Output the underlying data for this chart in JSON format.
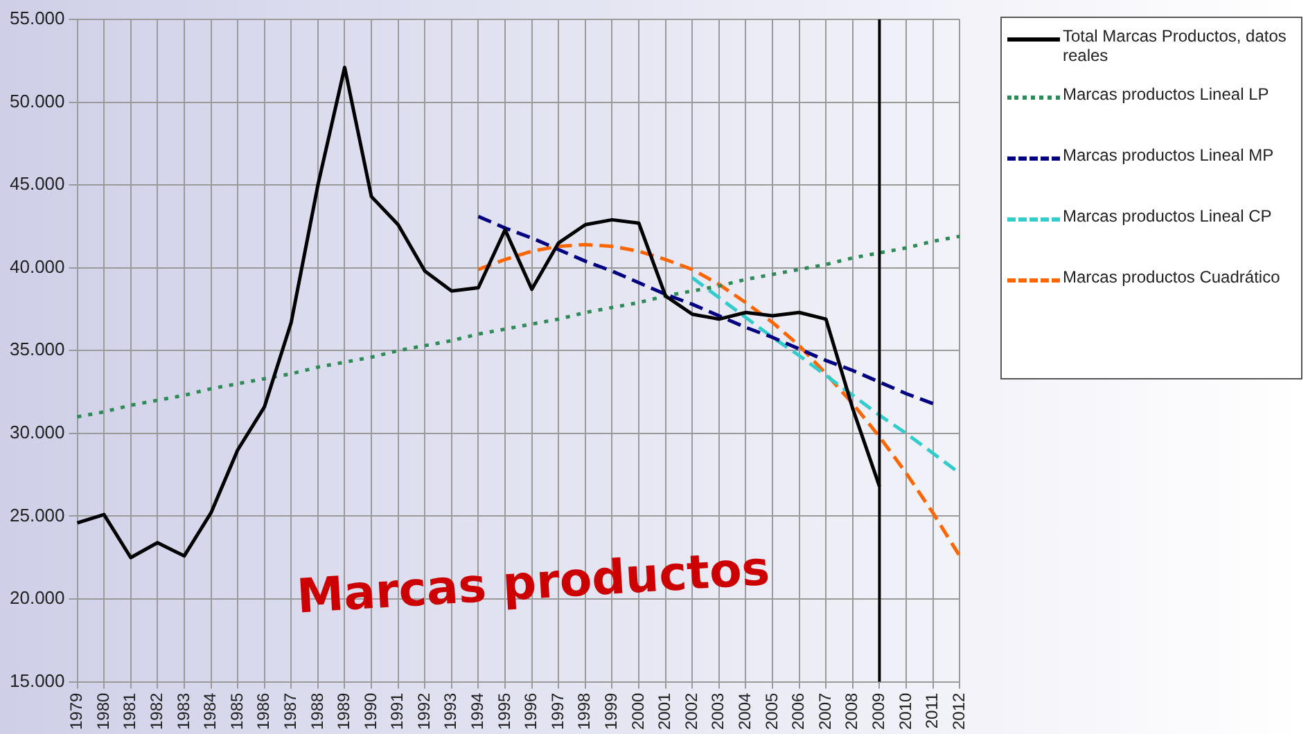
{
  "chart_data": {
    "type": "line",
    "categories": [
      "1979",
      "1980",
      "1981",
      "1982",
      "1983",
      "1984",
      "1985",
      "1986",
      "1987",
      "1988",
      "1989",
      "1990",
      "1991",
      "1992",
      "1993",
      "1994",
      "1995",
      "1996",
      "1997",
      "1998",
      "1999",
      "2000",
      "2001",
      "2002",
      "2003",
      "2004",
      "2005",
      "2006",
      "2007",
      "2008",
      "2009",
      "2010",
      "2011",
      "2012"
    ],
    "series": [
      {
        "name": "Total Marcas Productos, datos reales",
        "color": "#000000",
        "line_style": "solid",
        "values": [
          24600,
          25100,
          22500,
          23400,
          22600,
          25200,
          29000,
          31600,
          36700,
          45000,
          52100,
          44300,
          42600,
          39800,
          38600,
          38800,
          42300,
          38700,
          41500,
          42600,
          42900,
          42700,
          38300,
          37200,
          36900,
          37300,
          37100,
          37300,
          36900,
          31500,
          26800,
          null,
          null,
          null
        ]
      },
      {
        "name": "Marcas productos Lineal LP",
        "color": "#2e8b57",
        "line_style": "dotted",
        "values": [
          31000,
          31300,
          31700,
          32000,
          32300,
          32700,
          33000,
          33300,
          33600,
          34000,
          34300,
          34600,
          35000,
          35300,
          35600,
          36000,
          36300,
          36600,
          36900,
          37300,
          37600,
          37900,
          38300,
          38600,
          38900,
          39300,
          39600,
          39900,
          40200,
          40600,
          40900,
          41200,
          41600,
          41900
        ]
      },
      {
        "name": "Marcas productos Lineal MP",
        "color": "#000080",
        "line_style": "dashed",
        "values": [
          null,
          null,
          null,
          null,
          null,
          null,
          null,
          null,
          null,
          null,
          null,
          null,
          null,
          null,
          null,
          43100,
          42400,
          41800,
          41100,
          40400,
          39800,
          39100,
          38400,
          37800,
          37100,
          36400,
          35800,
          35100,
          34400,
          33800,
          33100,
          32400,
          31800,
          null
        ]
      },
      {
        "name": "Marcas productos Lineal CP",
        "color": "#33cccc",
        "line_style": "dashed",
        "values": [
          null,
          null,
          null,
          null,
          null,
          null,
          null,
          null,
          null,
          null,
          null,
          null,
          null,
          null,
          null,
          null,
          null,
          null,
          null,
          null,
          null,
          null,
          null,
          39400,
          38200,
          37000,
          35800,
          34700,
          33500,
          32300,
          31100,
          30000,
          28800,
          27600
        ]
      },
      {
        "name": "Marcas productos Cuadrático",
        "color": "#ff6600",
        "line_style": "dashed",
        "values": [
          null,
          null,
          null,
          null,
          null,
          null,
          null,
          null,
          null,
          null,
          null,
          null,
          null,
          null,
          null,
          39900,
          40500,
          41000,
          41300,
          41400,
          41300,
          41000,
          40500,
          39900,
          39000,
          37900,
          36700,
          35300,
          33600,
          31800,
          29800,
          27600,
          25200,
          22600
        ]
      }
    ],
    "ylim": [
      15000,
      55000
    ],
    "yticks": [
      {
        "value": 15000,
        "label": "15.000"
      },
      {
        "value": 20000,
        "label": "20.000"
      },
      {
        "value": 25000,
        "label": "25.000"
      },
      {
        "value": 30000,
        "label": "30.000"
      },
      {
        "value": 35000,
        "label": "35.000"
      },
      {
        "value": 40000,
        "label": "40.000"
      },
      {
        "value": 45000,
        "label": "45.000"
      },
      {
        "value": 50000,
        "label": "50.000"
      },
      {
        "value": 55000,
        "label": "55.000"
      }
    ],
    "grid": true,
    "legend": "right",
    "marker": "none",
    "ref_lines": [
      {
        "axis": "x",
        "value": "2009",
        "color": "#000000"
      }
    ],
    "annotations": [
      "Marcas productos"
    ]
  }
}
